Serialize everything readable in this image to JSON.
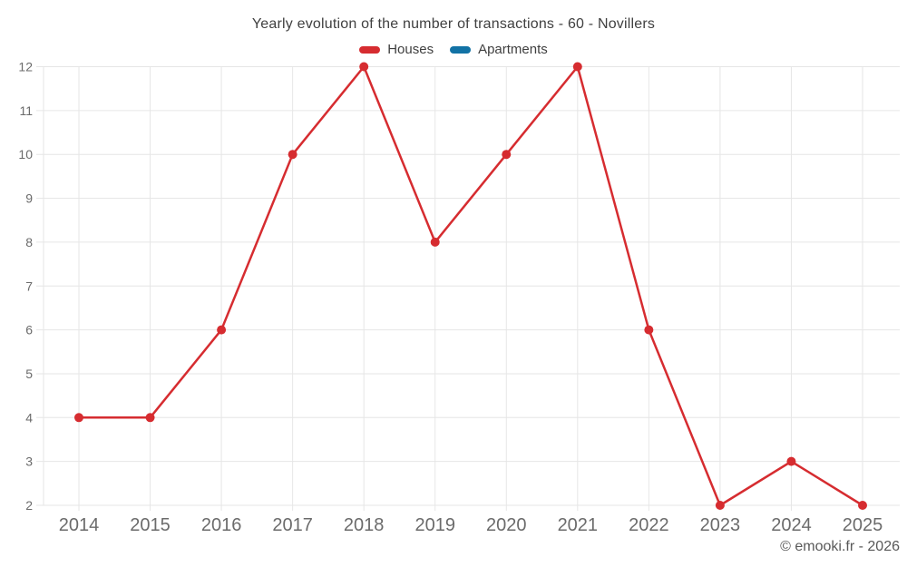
{
  "chart_data": {
    "type": "line",
    "title": "Yearly evolution of the number of transactions - 60 - Novillers",
    "categories": [
      "2014",
      "2015",
      "2016",
      "2017",
      "2018",
      "2019",
      "2020",
      "2021",
      "2022",
      "2023",
      "2024",
      "2025"
    ],
    "series": [
      {
        "name": "Houses",
        "color": "#d62c30",
        "values": [
          4,
          4,
          6,
          10,
          12,
          8,
          10,
          12,
          6,
          2,
          3,
          2
        ]
      },
      {
        "name": "Apartments",
        "color": "#1272a5",
        "values": []
      }
    ],
    "xlabel": "",
    "ylabel": "",
    "yticks": [
      2,
      3,
      4,
      5,
      6,
      7,
      8,
      9,
      10,
      11,
      12
    ],
    "ylim": [
      2,
      12
    ],
    "grid": true,
    "gridline_color": "#e6e6e6",
    "legend_position": "top"
  },
  "footer": {
    "copyright": "© emooki.fr - 2026"
  }
}
